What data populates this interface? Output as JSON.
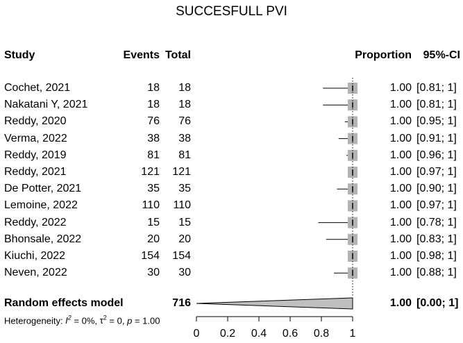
{
  "chart_data": {
    "type": "forest",
    "title": "SUCCESFULL PVI",
    "columns": {
      "study": "Study",
      "events": "Events",
      "total": "Total",
      "proportion": "Proportion",
      "ci": "95%-CI"
    },
    "rows": [
      {
        "study": "Cochet, 2021",
        "events": "18",
        "total": "18",
        "proportion_label": "1.00",
        "ci_label": "[0.81; 1]",
        "proportion": 1.0,
        "ci_low": 0.81,
        "ci_high": 1.0
      },
      {
        "study": "Nakatani Y, 2021",
        "events": "18",
        "total": "18",
        "proportion_label": "1.00",
        "ci_label": "[0.81; 1]",
        "proportion": 1.0,
        "ci_low": 0.81,
        "ci_high": 1.0
      },
      {
        "study": "Reddy, 2020",
        "events": "76",
        "total": "76",
        "proportion_label": "1.00",
        "ci_label": "[0.95; 1]",
        "proportion": 1.0,
        "ci_low": 0.95,
        "ci_high": 1.0
      },
      {
        "study": "Verma, 2022",
        "events": "38",
        "total": "38",
        "proportion_label": "1.00",
        "ci_label": "[0.91; 1]",
        "proportion": 1.0,
        "ci_low": 0.91,
        "ci_high": 1.0
      },
      {
        "study": "Reddy, 2019",
        "events": "81",
        "total": "81",
        "proportion_label": "1.00",
        "ci_label": "[0.96; 1]",
        "proportion": 1.0,
        "ci_low": 0.96,
        "ci_high": 1.0
      },
      {
        "study": "Reddy, 2021",
        "events": "121",
        "total": "121",
        "proportion_label": "1.00",
        "ci_label": "[0.97; 1]",
        "proportion": 1.0,
        "ci_low": 0.97,
        "ci_high": 1.0
      },
      {
        "study": "De Potter, 2021",
        "events": "35",
        "total": "35",
        "proportion_label": "1.00",
        "ci_label": "[0.90; 1]",
        "proportion": 1.0,
        "ci_low": 0.9,
        "ci_high": 1.0
      },
      {
        "study": "Lemoine, 2022",
        "events": "110",
        "total": "110",
        "proportion_label": "1.00",
        "ci_label": "[0.97; 1]",
        "proportion": 1.0,
        "ci_low": 0.97,
        "ci_high": 1.0
      },
      {
        "study": "Reddy, 2022",
        "events": "15",
        "total": "15",
        "proportion_label": "1.00",
        "ci_label": "[0.78; 1]",
        "proportion": 1.0,
        "ci_low": 0.78,
        "ci_high": 1.0
      },
      {
        "study": "Bhonsale, 2022",
        "events": "20",
        "total": "20",
        "proportion_label": "1.00",
        "ci_label": "[0.83; 1]",
        "proportion": 1.0,
        "ci_low": 0.83,
        "ci_high": 1.0
      },
      {
        "study": "Kiuchi, 2022",
        "events": "154",
        "total": "154",
        "proportion_label": "1.00",
        "ci_label": "[0.98; 1]",
        "proportion": 1.0,
        "ci_low": 0.98,
        "ci_high": 1.0
      },
      {
        "study": "Neven, 2022",
        "events": "30",
        "total": "30",
        "proportion_label": "1.00",
        "ci_label": "[0.88; 1]",
        "proportion": 1.0,
        "ci_low": 0.88,
        "ci_high": 1.0
      }
    ],
    "random_effects": {
      "label": "Random effects model",
      "total": "716",
      "proportion_label": "1.00",
      "ci_label": "[0.00; 1]",
      "proportion": 1.0,
      "ci_low": 0.0,
      "ci_high": 1.0
    },
    "heterogeneity": {
      "prefix": "Heterogeneity: ",
      "i2_value": " = 0%, ",
      "tau2_value": " = 0, ",
      "p_label": "p",
      "p_value": " = 1.00"
    },
    "x_axis": {
      "ticks": [
        0,
        0.2,
        0.4,
        0.6,
        0.8,
        1
      ],
      "tick_labels": [
        "0",
        "0.2",
        "0.4",
        "0.6",
        "0.8",
        "1"
      ],
      "range": [
        0,
        1
      ]
    },
    "colors": {
      "square": "#b3b3b3",
      "diamond": "#bfbfbf",
      "line": "#000000"
    }
  }
}
